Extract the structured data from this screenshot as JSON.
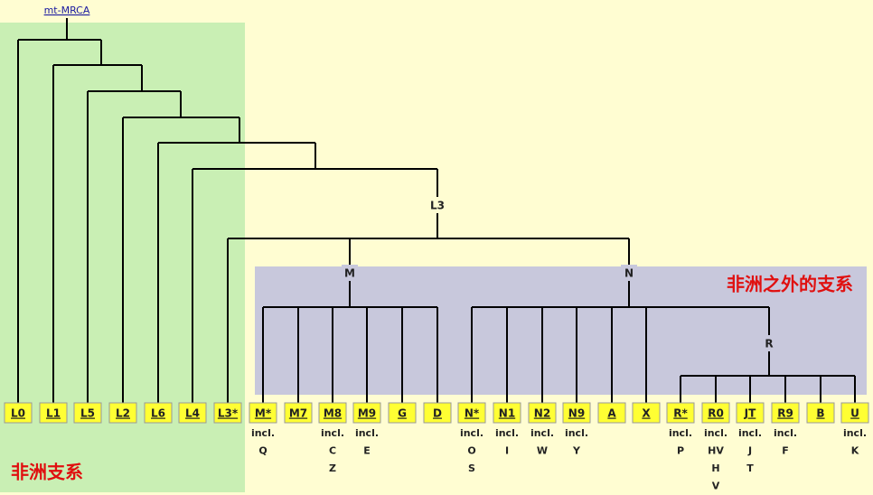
{
  "root": {
    "label": "mt-MRCA"
  },
  "internal": {
    "L3": "L3",
    "M": "M",
    "N": "N",
    "R": "R"
  },
  "regions": {
    "africa": "非洲支系",
    "outside": "非洲之外的支系"
  },
  "leaves": [
    {
      "label": "L0",
      "notes": []
    },
    {
      "label": "L1",
      "notes": []
    },
    {
      "label": "L5",
      "notes": []
    },
    {
      "label": "L2",
      "notes": []
    },
    {
      "label": "L6",
      "notes": []
    },
    {
      "label": "L4",
      "notes": []
    },
    {
      "label": "L3*",
      "notes": []
    },
    {
      "label": "M*",
      "notes": [
        "incl.",
        "Q"
      ]
    },
    {
      "label": "M7",
      "notes": []
    },
    {
      "label": "M8",
      "notes": [
        "incl.",
        "C",
        "Z"
      ]
    },
    {
      "label": "M9",
      "notes": [
        "incl.",
        "E"
      ]
    },
    {
      "label": "G",
      "notes": []
    },
    {
      "label": "D",
      "notes": []
    },
    {
      "label": "N*",
      "notes": [
        "incl.",
        "O",
        "S"
      ]
    },
    {
      "label": "N1",
      "notes": [
        "incl.",
        "I"
      ]
    },
    {
      "label": "N2",
      "notes": [
        "incl.",
        "W"
      ]
    },
    {
      "label": "N9",
      "notes": [
        "incl.",
        "Y"
      ]
    },
    {
      "label": "A",
      "notes": []
    },
    {
      "label": "X",
      "notes": []
    },
    {
      "label": "R*",
      "notes": [
        "incl.",
        "P"
      ]
    },
    {
      "label": "R0",
      "notes": [
        "incl.",
        "HV",
        "H",
        "V"
      ]
    },
    {
      "label": "JT",
      "notes": [
        "incl.",
        "J",
        "T"
      ]
    },
    {
      "label": "R9",
      "notes": [
        "incl.",
        "F"
      ]
    },
    {
      "label": "B",
      "notes": []
    },
    {
      "label": "U",
      "notes": [
        "incl.",
        "K"
      ]
    }
  ]
}
